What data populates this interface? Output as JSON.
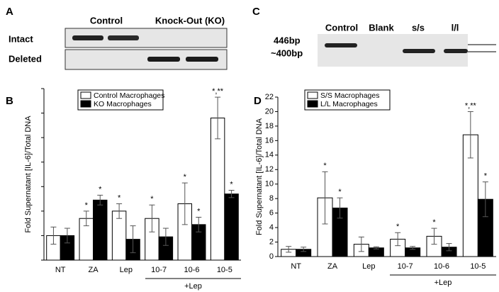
{
  "gel_a": {
    "panel": "A",
    "columns": [
      "Control",
      "Knock-Out (KO)"
    ],
    "rows": [
      "Intact",
      "Deleted"
    ]
  },
  "gel_c": {
    "panel": "C",
    "lanes": [
      "Control",
      "Blank",
      "s/s",
      "l/l"
    ],
    "sizes": [
      "446bp",
      "~400bp"
    ]
  },
  "chart_data": [
    {
      "type": "bar",
      "panel": "B",
      "y_label": "Fold Supernatant [IL-6]/Total DNA",
      "categories": [
        "NT",
        "ZA",
        "Lep",
        "10-7",
        "10-6",
        "10-5"
      ],
      "group_label": "+Lep",
      "ylim": [
        0,
        7
      ],
      "yticks": [
        0,
        1,
        2,
        3,
        4,
        5,
        6,
        7
      ],
      "show_tick_labels": false,
      "series": [
        {
          "name": "Control Macrophages",
          "color": "#ffffff",
          "values": [
            1.0,
            1.7,
            2.0,
            1.7,
            2.3,
            5.8
          ],
          "errors": [
            0.35,
            0.3,
            0.3,
            0.55,
            0.85,
            0.85
          ],
          "significance": [
            null,
            "*",
            "*",
            "*",
            "*",
            "*,**"
          ]
        },
        {
          "name": "KO Macrophages",
          "color": "#000000",
          "values": [
            1.0,
            2.45,
            0.85,
            0.95,
            1.45,
            2.7
          ],
          "errors": [
            0.3,
            0.2,
            0.55,
            0.35,
            0.3,
            0.15
          ],
          "significance": [
            null,
            "*",
            null,
            null,
            "*",
            "*"
          ]
        }
      ]
    },
    {
      "type": "bar",
      "panel": "D",
      "y_label": "Fold Supernatant [IL-6]/Total DNA",
      "categories": [
        "NT",
        "ZA",
        "Lep",
        "10-7",
        "10-6",
        "10-5"
      ],
      "group_label": "+Lep",
      "ylim": [
        0,
        22
      ],
      "yticks": [
        0,
        2,
        4,
        6,
        8,
        10,
        12,
        14,
        16,
        18,
        20,
        22
      ],
      "show_tick_labels": true,
      "series": [
        {
          "name": "S/S Macrophages",
          "color": "#ffffff",
          "values": [
            1.0,
            8.1,
            1.7,
            2.4,
            2.8,
            16.8
          ],
          "errors": [
            0.4,
            3.6,
            1.0,
            0.9,
            1.1,
            3.2
          ],
          "significance": [
            null,
            "*",
            null,
            "*",
            "*",
            "*,**"
          ]
        },
        {
          "name": "L/L Macrophages",
          "color": "#000000",
          "values": [
            1.0,
            6.7,
            1.2,
            1.2,
            1.3,
            7.9
          ],
          "errors": [
            0.3,
            1.4,
            0.15,
            0.2,
            0.5,
            2.4
          ],
          "significance": [
            null,
            "*",
            null,
            null,
            null,
            "*"
          ]
        }
      ]
    }
  ]
}
